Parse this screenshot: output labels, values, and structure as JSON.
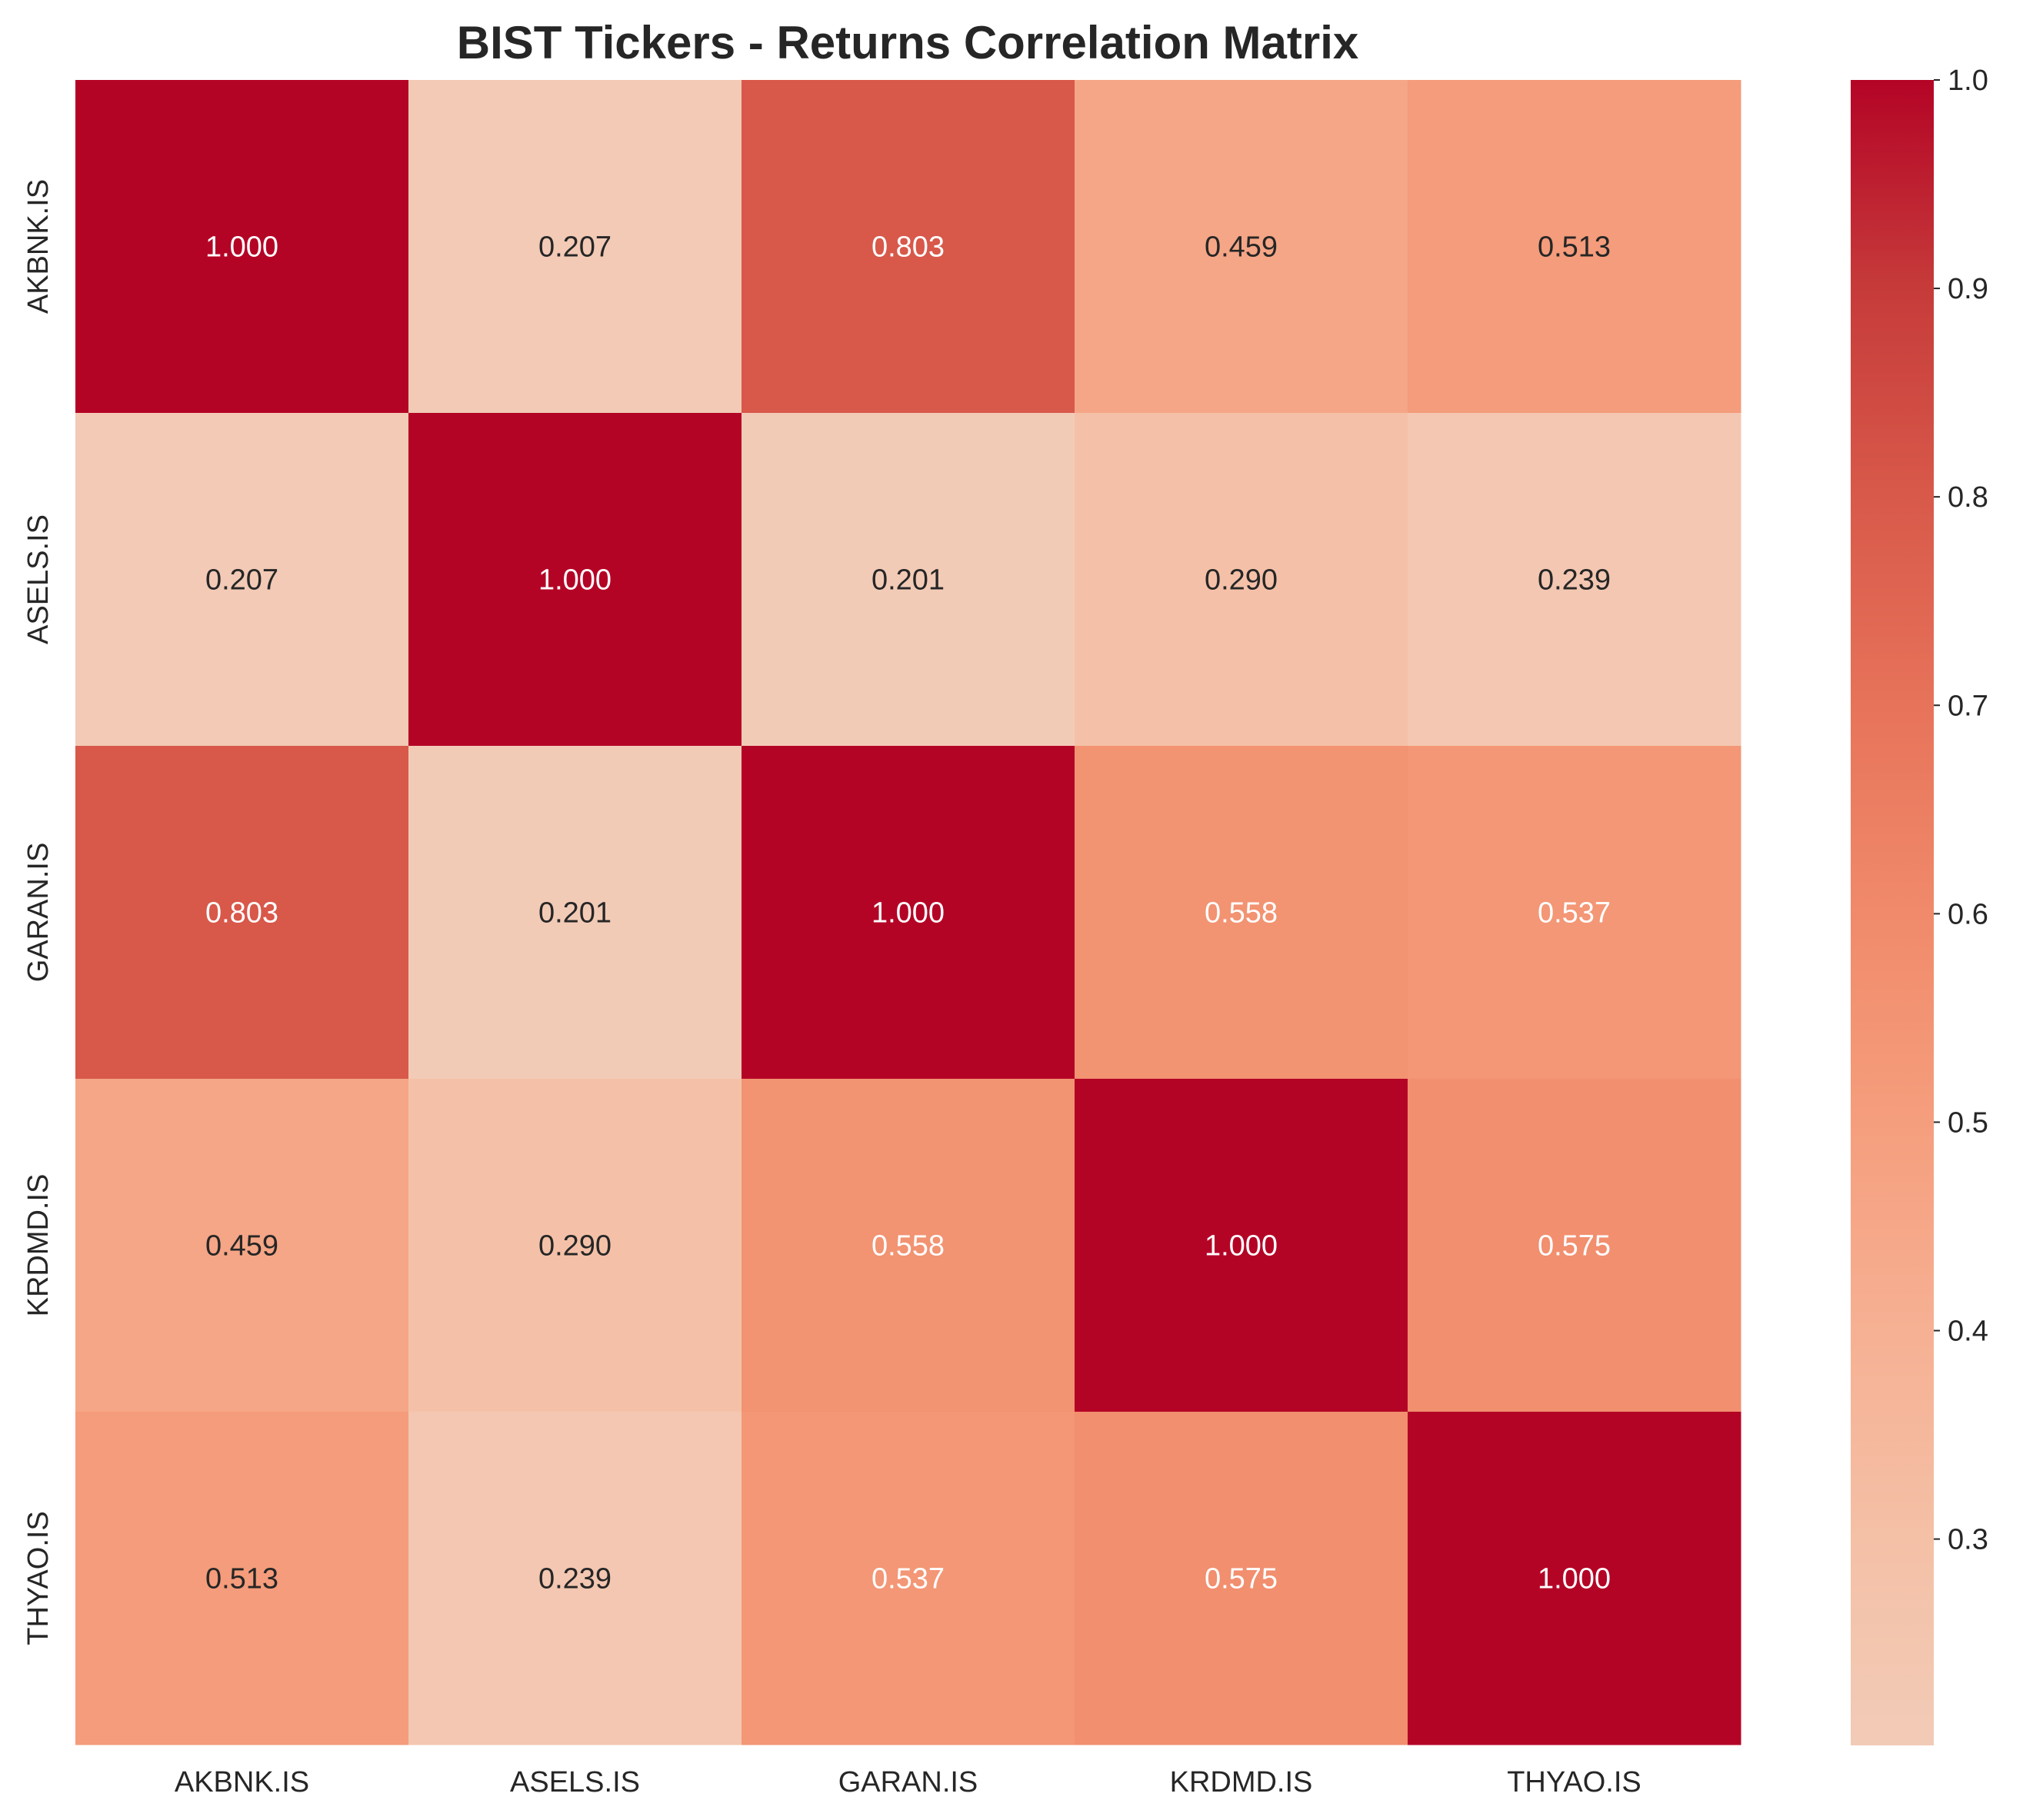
{
  "chart_data": {
    "type": "heatmap",
    "title": "BIST Tickers - Returns Correlation Matrix",
    "xlabel": "",
    "ylabel": "",
    "x_categories": [
      "AKBNK.IS",
      "ASELS.IS",
      "GARAN.IS",
      "KRDMD.IS",
      "THYAO.IS"
    ],
    "y_categories": [
      "AKBNK.IS",
      "ASELS.IS",
      "GARAN.IS",
      "KRDMD.IS",
      "THYAO.IS"
    ],
    "values": [
      [
        1.0,
        0.207,
        0.803,
        0.459,
        0.513
      ],
      [
        0.207,
        1.0,
        0.201,
        0.29,
        0.239
      ],
      [
        0.803,
        0.201,
        1.0,
        0.558,
        0.537
      ],
      [
        0.459,
        0.29,
        0.558,
        1.0,
        0.575
      ],
      [
        0.513,
        0.239,
        0.537,
        0.575,
        1.0
      ]
    ],
    "value_format": "3-decimal",
    "colormap": "coolwarm (upper half)",
    "color_range": [
      0.201,
      1.0
    ],
    "colorbar_ticks": [
      "0.3",
      "0.4",
      "0.5",
      "0.6",
      "0.7",
      "0.8",
      "0.9",
      "1.0"
    ],
    "legend": "colorbar right",
    "grid": false
  }
}
